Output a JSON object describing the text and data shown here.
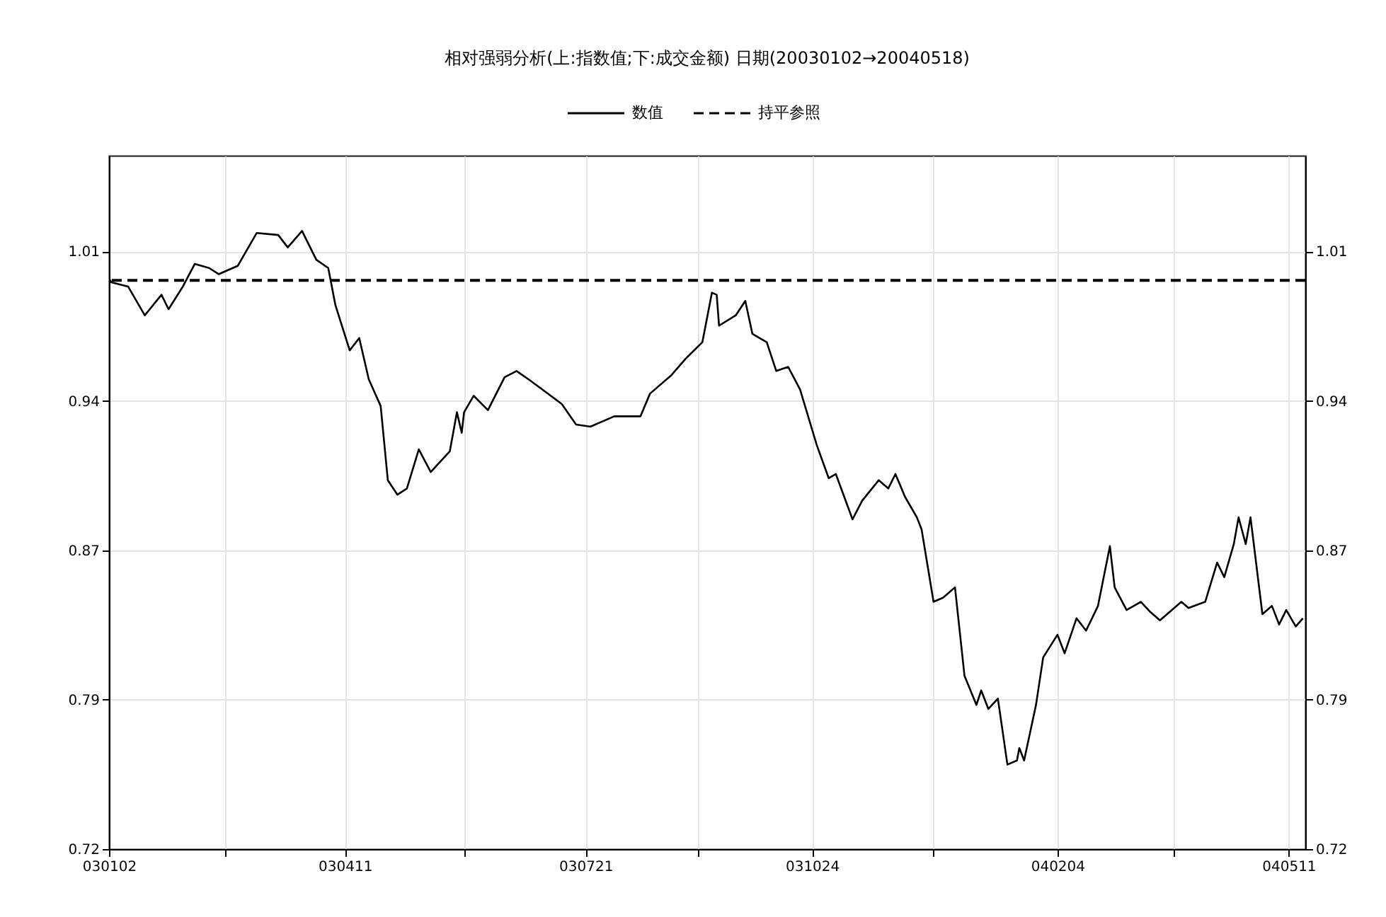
{
  "chart_data": {
    "type": "line",
    "title": "相对强弱分析(上:指数值;下:成交金额)    日期(20030102→20040518)",
    "legend": "top",
    "grid": true,
    "line_style": "solid",
    "marker": "none",
    "xlim": [
      "2003-01-02",
      "2004-05-18"
    ],
    "xticks": [
      {
        "value": "2003-01-02",
        "label": "030102"
      },
      {
        "value": "2003-02-20",
        "label": null
      },
      {
        "value": "2003-04-11",
        "label": "030411"
      },
      {
        "value": "2003-05-31",
        "label": null
      },
      {
        "value": "2003-07-21",
        "label": "030721"
      },
      {
        "value": "2003-09-06",
        "label": null
      },
      {
        "value": "2003-10-24",
        "label": "031024"
      },
      {
        "value": "2003-12-14",
        "label": null
      },
      {
        "value": "2004-02-04",
        "label": "040204"
      },
      {
        "value": "2004-03-24",
        "label": null
      },
      {
        "value": "2004-05-11",
        "label": "040511"
      }
    ],
    "ylim": [
      0.72,
      1.0565
    ],
    "yticks": [
      {
        "value": 0.72,
        "label": "0.72"
      },
      {
        "value": 0.7925,
        "label": "0.79"
      },
      {
        "value": 0.865,
        "label": "0.87"
      },
      {
        "value": 0.9375,
        "label": "0.94"
      },
      {
        "value": 1.01,
        "label": "1.01"
      }
    ],
    "y2lim": [
      0.72,
      1.0565
    ],
    "y2ticks": [
      {
        "value": 0.72,
        "label": "0.72"
      },
      {
        "value": 0.7925,
        "label": "0.79"
      },
      {
        "value": 0.865,
        "label": "0.87"
      },
      {
        "value": 0.9375,
        "label": "0.94"
      },
      {
        "value": 1.01,
        "label": "1.01"
      }
    ],
    "ref_lines": [
      {
        "axis": "y",
        "value": 0.996,
        "label": "持平参照",
        "color": "#000000",
        "line_style": "dashed"
      }
    ],
    "series": [
      {
        "name": "数值",
        "color": "#000000",
        "x": [
          "2003-01-02",
          "2003-01-03",
          "2003-01-10",
          "2003-01-17",
          "2003-01-24",
          "2003-01-27",
          "2003-02-02",
          "2003-02-07",
          "2003-02-13",
          "2003-02-17",
          "2003-02-25",
          "2003-03-05",
          "2003-03-14",
          "2003-03-18",
          "2003-03-24",
          "2003-03-30",
          "2003-04-04",
          "2003-04-07",
          "2003-04-13",
          "2003-04-17",
          "2003-04-21",
          "2003-04-26",
          "2003-04-29",
          "2003-05-03",
          "2003-05-07",
          "2003-05-12",
          "2003-05-17",
          "2003-05-25",
          "2003-05-28",
          "2003-05-30",
          "2003-05-31",
          "2003-06-04",
          "2003-06-10",
          "2003-06-17",
          "2003-06-22",
          "2003-06-27",
          "2003-07-11",
          "2003-07-17",
          "2003-07-23",
          "2003-08-02",
          "2003-08-13",
          "2003-08-17",
          "2003-08-26",
          "2003-09-01",
          "2003-09-08",
          "2003-09-12",
          "2003-09-14",
          "2003-09-15",
          "2003-09-22",
          "2003-09-26",
          "2003-09-29",
          "2003-10-05",
          "2003-10-09",
          "2003-10-14",
          "2003-10-19",
          "2003-10-26",
          "2003-10-31",
          "2003-11-03",
          "2003-11-10",
          "2003-11-14",
          "2003-11-21",
          "2003-11-25",
          "2003-11-28",
          "2003-12-02",
          "2003-12-07",
          "2003-12-09",
          "2003-12-14",
          "2003-12-18",
          "2003-12-23",
          "2003-12-27",
          "2004-01-01",
          "2004-01-03",
          "2004-01-06",
          "2004-01-10",
          "2004-01-14",
          "2004-01-18",
          "2004-01-19",
          "2004-01-21",
          "2004-01-26",
          "2004-01-29",
          "2004-02-04",
          "2004-02-07",
          "2004-02-12",
          "2004-02-16",
          "2004-02-21",
          "2004-02-26",
          "2004-02-28",
          "2004-03-04",
          "2004-03-10",
          "2004-03-14",
          "2004-03-18",
          "2004-03-27",
          "2004-03-30",
          "2004-04-06",
          "2004-04-11",
          "2004-04-14",
          "2004-04-18",
          "2004-04-20",
          "2004-04-23",
          "2004-04-25",
          "2004-04-30",
          "2004-05-04",
          "2004-05-07",
          "2004-05-10",
          "2004-05-14",
          "2004-05-17"
        ],
        "values": [
          0.997,
          0.995,
          0.993,
          0.979,
          0.989,
          0.982,
          0.993,
          1.004,
          1.002,
          0.999,
          1.003,
          1.019,
          1.018,
          1.012,
          1.02,
          1.006,
          1.002,
          0.984,
          0.962,
          0.968,
          0.948,
          0.935,
          0.899,
          0.892,
          0.895,
          0.914,
          0.903,
          0.913,
          0.932,
          0.922,
          0.932,
          0.94,
          0.933,
          0.949,
          0.952,
          0.948,
          0.936,
          0.926,
          0.925,
          0.93,
          0.93,
          0.941,
          0.95,
          0.958,
          0.966,
          0.99,
          0.989,
          0.974,
          0.979,
          0.986,
          0.97,
          0.966,
          0.952,
          0.954,
          0.943,
          0.916,
          0.9,
          0.902,
          0.88,
          0.889,
          0.899,
          0.895,
          0.902,
          0.891,
          0.881,
          0.875,
          0.84,
          0.842,
          0.847,
          0.804,
          0.79,
          0.797,
          0.788,
          0.793,
          0.761,
          0.763,
          0.769,
          0.763,
          0.79,
          0.813,
          0.824,
          0.815,
          0.832,
          0.826,
          0.838,
          0.867,
          0.847,
          0.836,
          0.84,
          0.835,
          0.831,
          0.84,
          0.837,
          0.84,
          0.859,
          0.852,
          0.868,
          0.881,
          0.868,
          0.881,
          0.834,
          0.838,
          0.829,
          0.836,
          0.828,
          0.832
        ]
      }
    ]
  }
}
